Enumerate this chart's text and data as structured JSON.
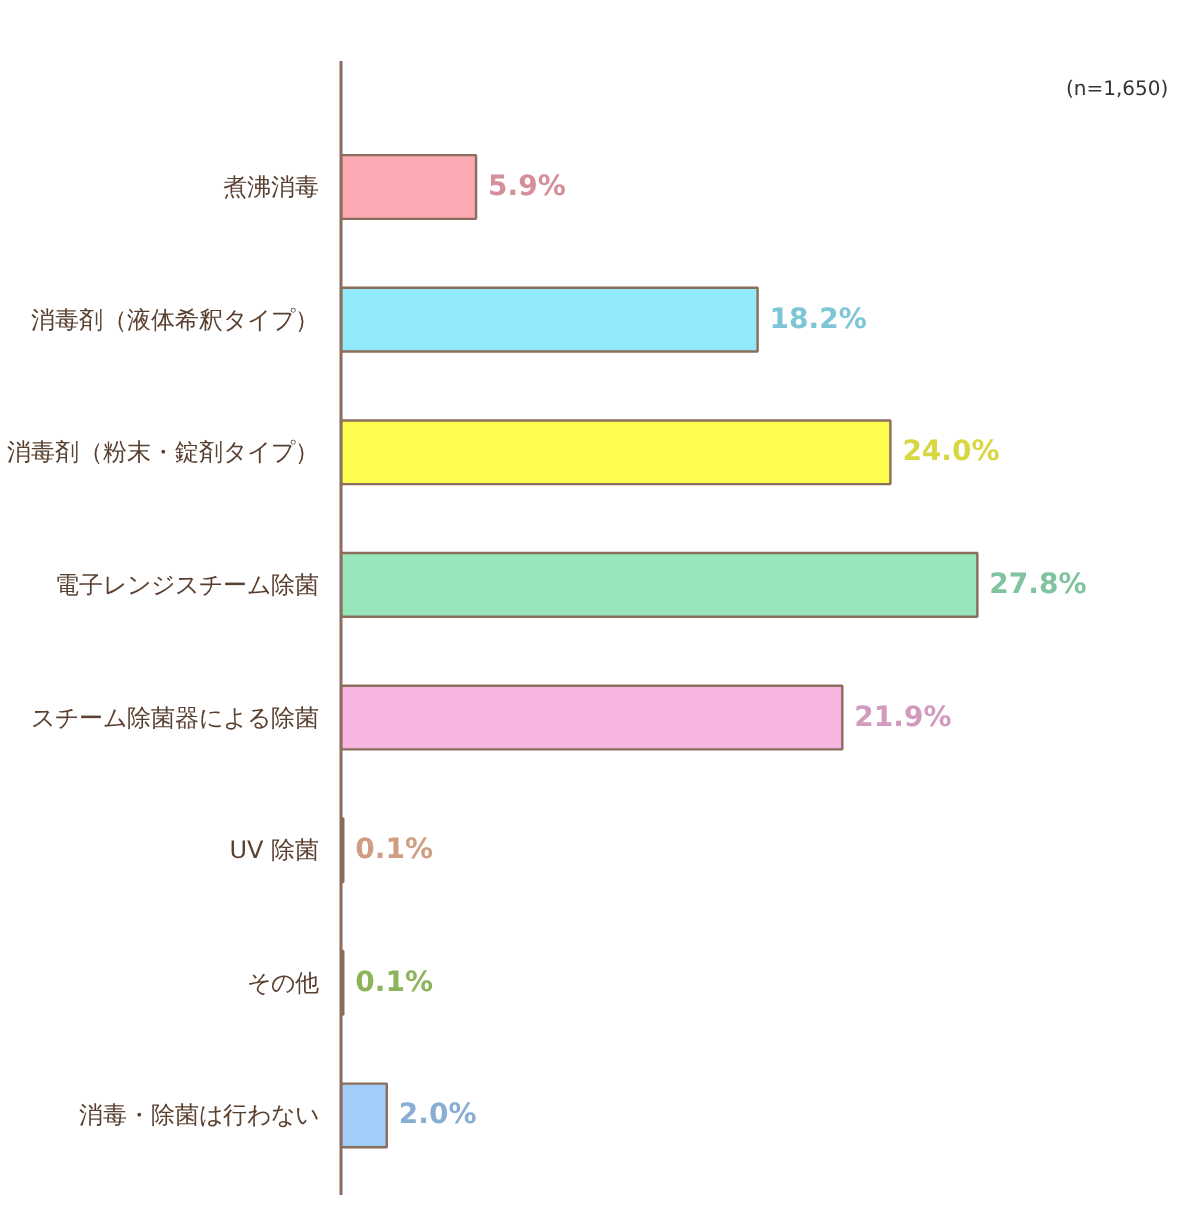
{
  "chart_data": {
    "type": "bar",
    "orientation": "horizontal",
    "categories": [
      "煮沸消毒",
      "消毒剤（液体希釈タイプ）",
      "消毒剤（粉末・錠剤タイプ）",
      "電子レンジスチーム除菌",
      "スチーム除菌器による除菌",
      "UV 除菌",
      "その他",
      "消毒・除菌は行わない"
    ],
    "values": [
      5.9,
      18.2,
      24.0,
      27.8,
      21.9,
      0.1,
      0.1,
      2.0
    ],
    "value_labels": [
      "5.9%",
      "18.2%",
      "24.0%",
      "27.8%",
      "21.9%",
      "0.1%",
      "0.1%",
      "2.0%"
    ],
    "colors": [
      "#fba9b3",
      "#92e9fb",
      "#fdfd4f",
      "#97e6bb",
      "#f6b6e0",
      "#f5b89a",
      "#a8d46c",
      "#a2cdf9"
    ],
    "annotations": [
      "(n=1,650)"
    ]
  }
}
